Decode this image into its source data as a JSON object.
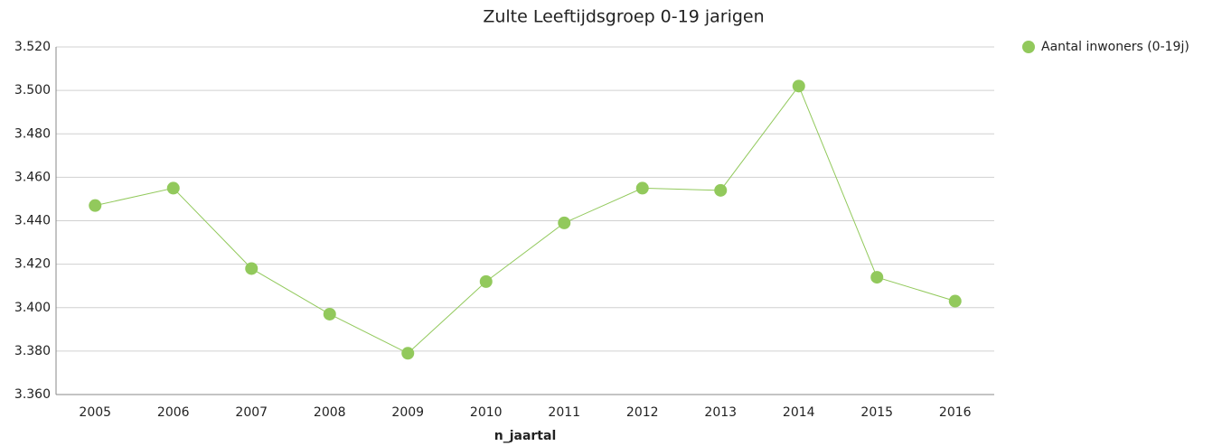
{
  "chart_data": {
    "type": "line",
    "title": "Zulte  Leeftijdsgroep 0-19 jarigen",
    "x_label": "n_jaartal",
    "categories": [
      "2005",
      "2006",
      "2007",
      "2008",
      "2009",
      "2010",
      "2011",
      "2012",
      "2013",
      "2014",
      "2015",
      "2016"
    ],
    "series": [
      {
        "name": "Aantal inwoners (0-19j)",
        "color": "#92c95c",
        "values": [
          3447,
          3455,
          3418,
          3397,
          3379,
          3412,
          3439,
          3455,
          3454,
          3502,
          3414,
          3403
        ]
      }
    ],
    "ylim": [
      3360,
      3520
    ],
    "yticks": [
      {
        "value": 3360,
        "label": "3.360"
      },
      {
        "value": 3380,
        "label": "3.380"
      },
      {
        "value": 3400,
        "label": "3.400"
      },
      {
        "value": 3420,
        "label": "3.420"
      },
      {
        "value": 3440,
        "label": "3.440"
      },
      {
        "value": 3460,
        "label": "3.460"
      },
      {
        "value": 3480,
        "label": "3.480"
      },
      {
        "value": 3500,
        "label": "3.500"
      },
      {
        "value": 3520,
        "label": "3.520"
      }
    ],
    "grid": true,
    "legend": "right"
  }
}
